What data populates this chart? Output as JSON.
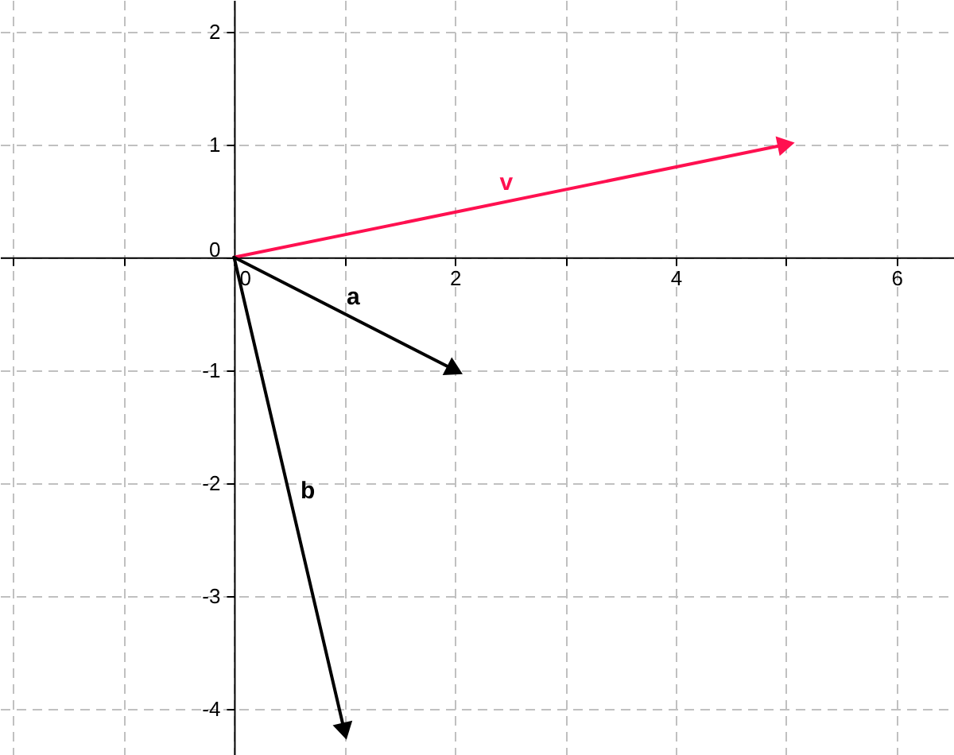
{
  "chart_data": {
    "type": "line",
    "xlim": [
      -2.12,
      6.52
    ],
    "ylim": [
      -4.41,
      2.28
    ],
    "xticks": [
      {
        "value": -2,
        "label": null
      },
      {
        "value": -1,
        "label": null
      },
      0,
      {
        "value": 1,
        "label": null
      },
      2,
      {
        "value": 3,
        "label": null
      },
      4,
      {
        "value": 5,
        "label": null
      },
      6
    ],
    "yticks": [
      -4,
      -3,
      -2,
      -1,
      0,
      1,
      2
    ],
    "grid": true,
    "series": [
      {
        "name": "v",
        "color": "#ff1050",
        "x": [
          0,
          5
        ],
        "values": [
          0,
          1
        ]
      },
      {
        "name": "a",
        "color": "#000000",
        "x": [
          0,
          2
        ],
        "values": [
          0,
          -1
        ]
      },
      {
        "name": "b",
        "color": "#000000",
        "x": [
          0,
          1
        ],
        "values": [
          0,
          -4.2
        ]
      }
    ]
  }
}
